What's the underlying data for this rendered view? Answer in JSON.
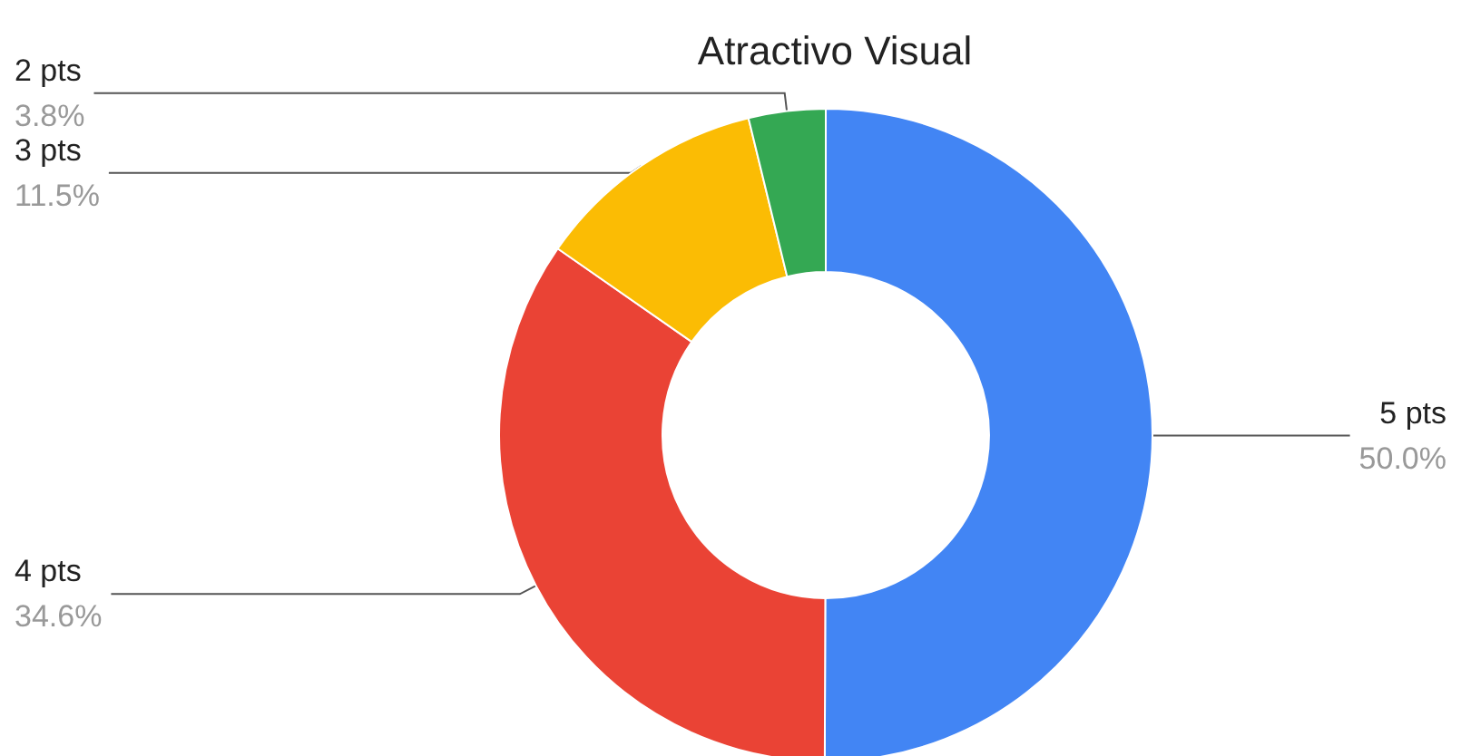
{
  "chart_data": {
    "type": "donut",
    "title": "Atractivo Visual",
    "categories": [
      "5 pts",
      "4 pts",
      "3 pts",
      "2 pts"
    ],
    "values": [
      50.0,
      34.6,
      11.5,
      3.8
    ],
    "value_labels": [
      "50.0%",
      "34.6%",
      "11.5%",
      "3.8%"
    ],
    "colors": [
      "#4285f4",
      "#ea4335",
      "#fbbc04",
      "#34a853"
    ],
    "legend": false
  }
}
